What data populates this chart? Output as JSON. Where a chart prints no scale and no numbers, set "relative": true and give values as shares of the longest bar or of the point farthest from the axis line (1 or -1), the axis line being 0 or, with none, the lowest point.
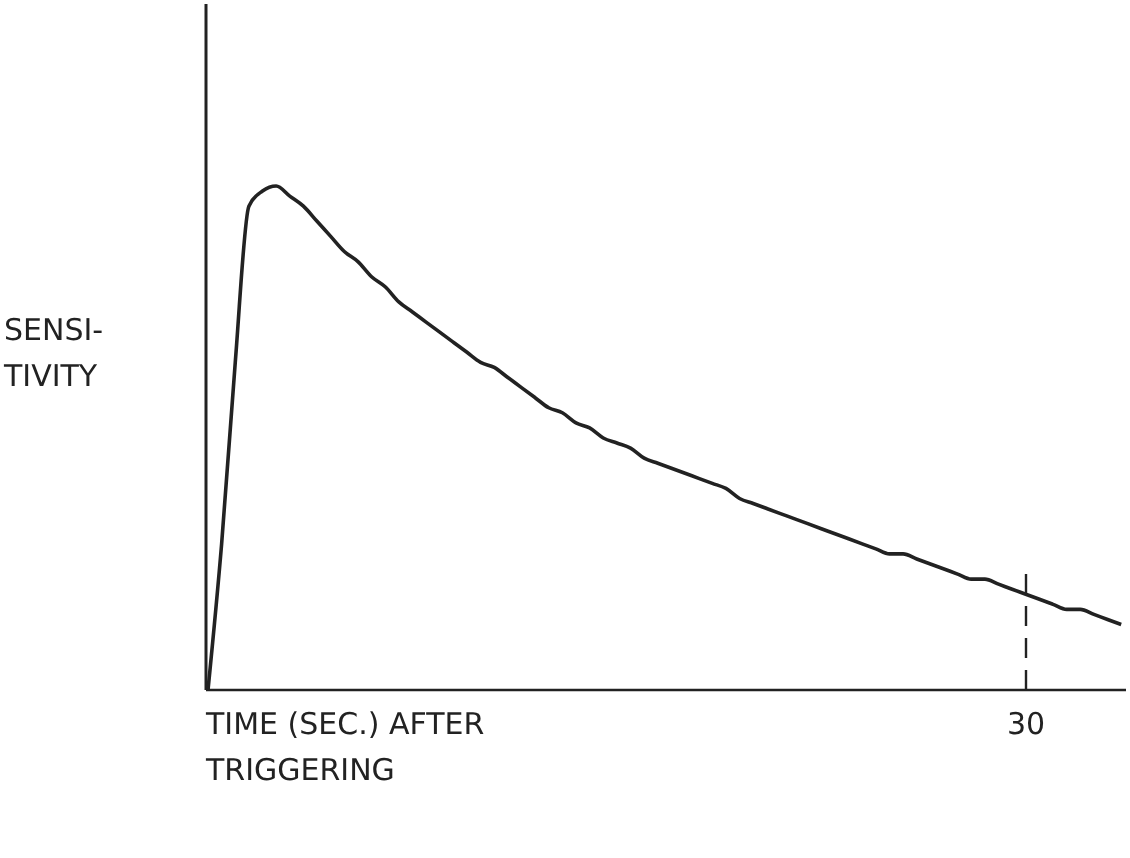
{
  "chart_data": {
    "type": "line",
    "relative": true,
    "xlabel": "TIME (SEC.) AFTER\nTRIGGERING",
    "ylabel": "SENSI-\nTIVITY",
    "marker": "none",
    "line_style": "solid",
    "annotations": [
      "30"
    ],
    "categories": [
      null,
      null,
      null,
      null,
      null,
      null,
      null,
      null,
      null,
      null,
      null,
      null,
      null,
      null,
      null,
      null,
      null,
      null,
      null,
      null,
      null,
      null,
      null,
      null,
      null,
      null,
      null,
      null,
      null,
      null,
      null,
      null,
      null,
      null,
      null,
      null,
      null,
      null,
      null,
      null,
      null,
      null,
      null,
      null,
      null,
      null,
      null,
      null,
      null,
      null,
      null,
      null,
      null,
      null,
      null,
      null,
      null,
      null,
      null,
      null,
      null,
      null,
      null,
      null,
      null,
      null,
      null,
      null
    ],
    "series": [
      {
        "color": "#222222",
        "values": [
          0,
          0.29,
          0.65,
          0.96,
          0.99,
          1,
          0.98,
          0.96,
          0.93,
          0.9,
          0.87,
          0.85,
          0.82,
          0.8,
          0.77,
          0.75,
          0.73,
          0.71,
          0.69,
          0.67,
          0.65,
          0.64,
          0.62,
          0.6,
          0.58,
          0.56,
          0.55,
          0.53,
          0.52,
          0.5,
          0.49,
          0.48,
          0.46,
          0.45,
          0.44,
          0.43,
          0.42,
          0.41,
          0.4,
          0.38,
          0.37,
          0.36,
          0.35,
          0.34,
          0.33,
          0.32,
          0.31,
          0.3,
          0.29,
          0.28,
          0.27,
          0.27,
          0.26,
          0.25,
          0.24,
          0.23,
          0.22,
          0.22,
          0.21,
          0.2,
          0.19,
          0.18,
          0.17,
          0.16,
          0.16,
          0.15,
          0.14,
          0.13
        ]
      }
    ]
  }
}
